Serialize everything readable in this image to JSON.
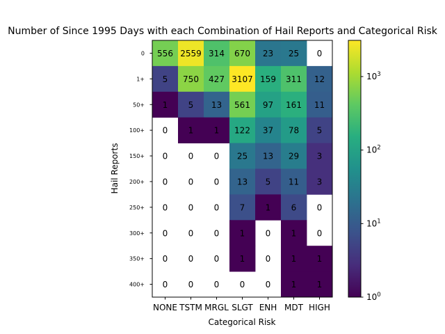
{
  "chart_data": {
    "type": "heatmap",
    "title": "Number of Since 1995 Days with each Combination of Hail Reports and Categorical Risk",
    "xlabel": "Categorical Risk",
    "ylabel": "Hail Reports",
    "x_categories": [
      "NONE",
      "TSTM",
      "MRGL",
      "SLGT",
      "ENH",
      "MDT",
      "HIGH"
    ],
    "y_categories": [
      "0",
      "1+",
      "50+",
      "100+",
      "150+",
      "200+",
      "250+",
      "300+",
      "350+",
      "400+"
    ],
    "values": [
      [
        556,
        2559,
        314,
        670,
        23,
        25,
        0
      ],
      [
        5,
        750,
        427,
        3107,
        159,
        311,
        12
      ],
      [
        1,
        5,
        13,
        561,
        97,
        161,
        11
      ],
      [
        0,
        1,
        1,
        122,
        37,
        78,
        5
      ],
      [
        0,
        0,
        0,
        25,
        13,
        29,
        3
      ],
      [
        0,
        0,
        0,
        13,
        5,
        11,
        3
      ],
      [
        0,
        0,
        0,
        7,
        1,
        6,
        0
      ],
      [
        0,
        0,
        0,
        1,
        0,
        1,
        0
      ],
      [
        0,
        0,
        0,
        1,
        0,
        1,
        1
      ],
      [
        0,
        0,
        0,
        0,
        0,
        1,
        1
      ]
    ],
    "colorbar": {
      "scale": "log",
      "range": [
        1,
        3107
      ],
      "ticks": [
        1,
        10,
        100,
        1000
      ],
      "tick_labels": [
        "10",
        "10",
        "10",
        "10"
      ],
      "tick_exponents": [
        "0",
        "1",
        "2",
        "3"
      ],
      "colormap": "viridis"
    }
  }
}
